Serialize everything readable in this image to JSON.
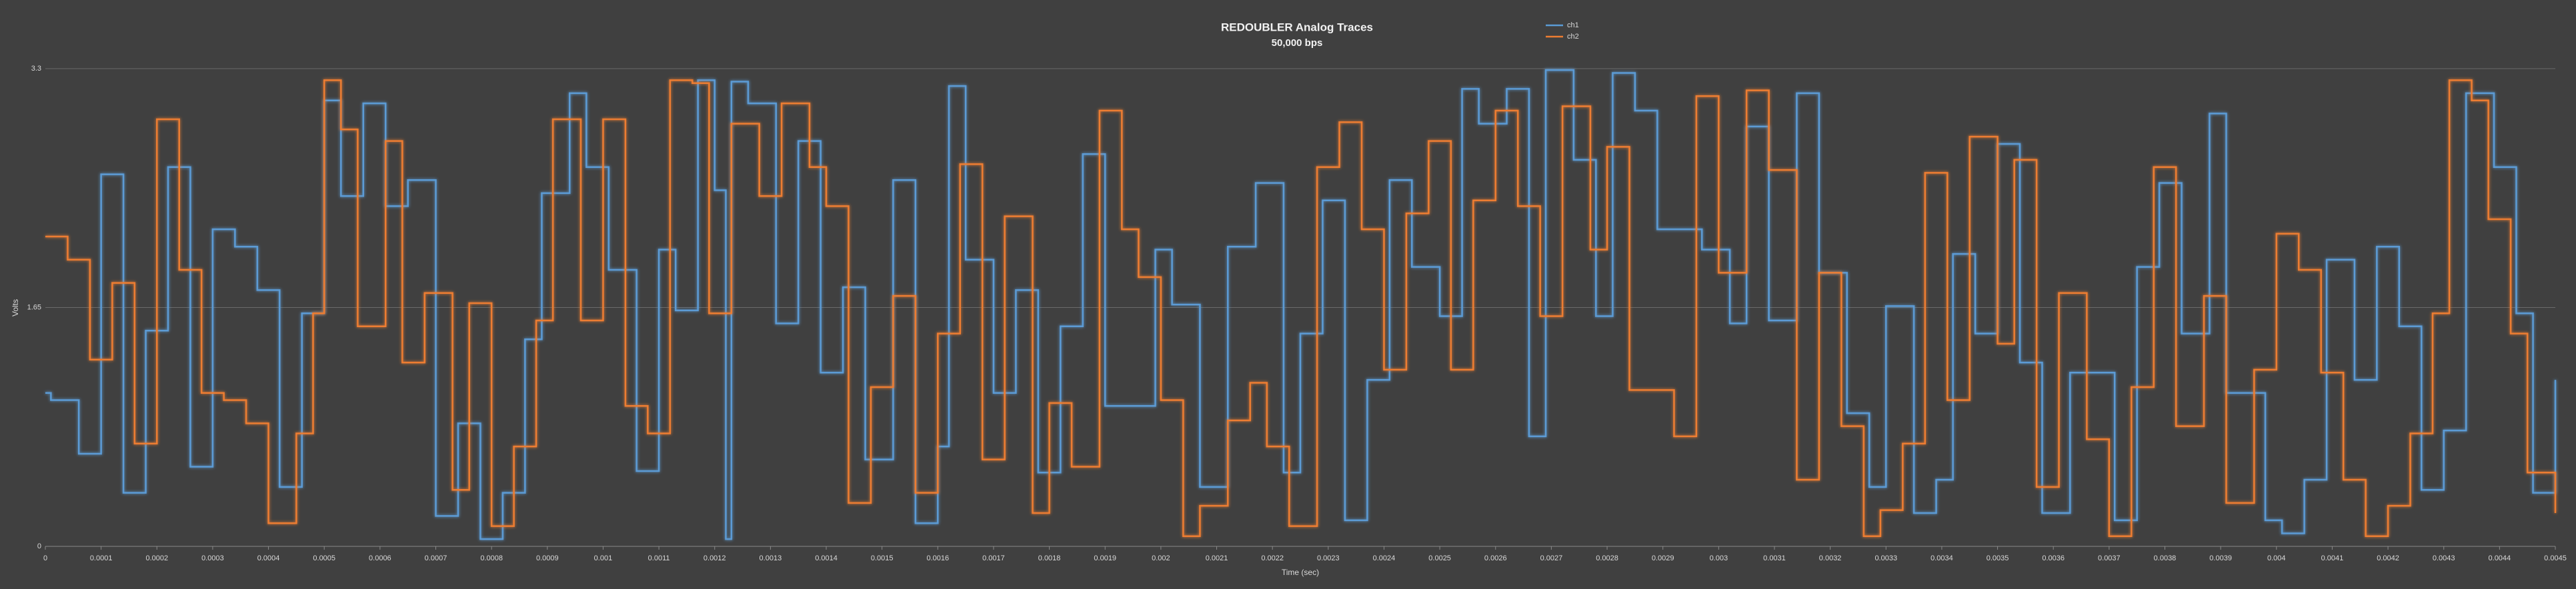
{
  "chart_data": {
    "type": "step-line",
    "title": "REDOUBLER Analog Traces",
    "subtitle": "50,000 bps",
    "x_label": "Time (sec)",
    "y_label": "Volts",
    "xlim": [
      0,
      0.0045
    ],
    "xticks": [
      0,
      0.0001,
      0.0002,
      0.0003,
      0.0004,
      0.0005,
      0.0006,
      0.0007,
      0.0008,
      0.0009,
      0.001,
      0.0011,
      0.0012,
      0.0013,
      0.0014,
      0.0015,
      0.0016,
      0.0017,
      0.0018,
      0.0019,
      0.002,
      0.0021,
      0.0022,
      0.0023,
      0.0024,
      0.0025,
      0.0026,
      0.0027,
      0.0028,
      0.0029,
      0.003,
      0.0031,
      0.0032,
      0.0033,
      0.0034,
      0.0035,
      0.0036,
      0.0037,
      0.0038,
      0.0039,
      0.004,
      0.0041,
      0.0042,
      0.0043,
      0.0044,
      0.0045
    ],
    "ylim": [
      0,
      3.3
    ],
    "yticks": [
      0,
      1.65,
      3.3
    ],
    "grid": true,
    "legend": "top",
    "series": [
      {
        "name": "ch1",
        "color": "#5b9bd5",
        "x": [
          0,
          1e-05,
          6e-05,
          0.0001,
          0.00014,
          0.00018,
          0.00022,
          0.00026,
          0.0003,
          0.00034,
          0.00038,
          0.00042,
          0.00046,
          0.0005,
          0.00053,
          0.00057,
          0.00061,
          0.00065,
          0.0007,
          0.00074,
          0.00078,
          0.00082,
          0.00086,
          0.00089,
          0.00094,
          0.00097,
          0.00101,
          0.00106,
          0.0011,
          0.00113,
          0.00117,
          0.0012,
          0.00122,
          0.00123,
          0.00126,
          0.00131,
          0.00135,
          0.00139,
          0.00143,
          0.00147,
          0.00152,
          0.00156,
          0.0016,
          0.00162,
          0.00165,
          0.0017,
          0.00174,
          0.00178,
          0.00182,
          0.00186,
          0.0019,
          0.00199,
          0.00202,
          0.00207,
          0.00212,
          0.00217,
          0.00222,
          0.00225,
          0.00229,
          0.00233,
          0.00237,
          0.00241,
          0.00245,
          0.0025,
          0.00254,
          0.00257,
          0.00262,
          0.00266,
          0.00269,
          0.00274,
          0.00278,
          0.00281,
          0.00285,
          0.00289,
          0.00297,
          0.00302,
          0.00305,
          0.00309,
          0.00314,
          0.00318,
          0.00323,
          0.00327,
          0.0033,
          0.00335,
          0.00339,
          0.00342,
          0.00346,
          0.0035,
          0.00354,
          0.00358,
          0.00363,
          0.00371,
          0.00375,
          0.00379,
          0.00383,
          0.00388,
          0.00391,
          0.00398,
          0.00401,
          0.00405,
          0.00409,
          0.00414,
          0.00418,
          0.00422,
          0.00426,
          0.0043,
          0.00434,
          0.00439,
          0.00443,
          0.00446,
          0.0045
        ],
        "values": [
          1.06,
          1.01,
          0.64,
          2.57,
          0.37,
          1.49,
          2.62,
          0.55,
          2.19,
          2.07,
          1.77,
          0.41,
          1.61,
          3.08,
          2.42,
          3.06,
          2.35,
          2.53,
          0.21,
          0.85,
          0.05,
          0.37,
          1.43,
          2.44,
          3.13,
          2.62,
          1.91,
          0.52,
          2.05,
          1.63,
          3.22,
          2.46,
          0.05,
          3.21,
          3.06,
          1.54,
          2.8,
          1.2,
          1.79,
          0.6,
          2.53,
          0.16,
          0.69,
          3.18,
          1.98,
          1.06,
          1.77,
          0.51,
          1.52,
          2.71,
          0.97,
          2.05,
          1.67,
          0.41,
          2.07,
          2.51,
          0.51,
          1.47,
          2.39,
          0.18,
          1.15,
          2.53,
          1.93,
          1.59,
          3.16,
          2.92,
          3.16,
          0.76,
          3.29,
          2.67,
          1.59,
          3.27,
          3.01,
          2.19,
          2.05,
          1.54,
          2.9,
          1.56,
          3.13,
          1.89,
          0.92,
          0.41,
          1.66,
          0.23,
          0.46,
          2.02,
          1.47,
          2.78,
          1.27,
          0.23,
          1.2,
          0.18,
          1.93,
          2.51,
          1.47,
          2.99,
          1.06,
          0.18,
          0.09,
          0.46,
          1.98,
          1.15,
          2.07,
          1.52,
          0.39,
          0.8,
          3.13,
          2.62,
          1.61,
          0.37,
          1.15
        ]
      },
      {
        "name": "ch2",
        "color": "#ed7d31",
        "x": [
          0,
          4e-05,
          8e-05,
          0.00012,
          0.00016,
          0.0002,
          0.00024,
          0.00028,
          0.00032,
          0.00036,
          0.0004,
          0.00045,
          0.00048,
          0.0005,
          0.00053,
          0.00056,
          0.00061,
          0.00064,
          0.00068,
          0.00073,
          0.00076,
          0.0008,
          0.00084,
          0.00088,
          0.00091,
          0.00096,
          0.001,
          0.00104,
          0.00108,
          0.00112,
          0.00116,
          0.00119,
          0.00123,
          0.00128,
          0.00132,
          0.00137,
          0.0014,
          0.00144,
          0.00148,
          0.00152,
          0.00156,
          0.0016,
          0.00164,
          0.00168,
          0.00172,
          0.00177,
          0.0018,
          0.00184,
          0.00189,
          0.00193,
          0.00196,
          0.002,
          0.00204,
          0.00207,
          0.00212,
          0.00216,
          0.00219,
          0.00223,
          0.00228,
          0.00232,
          0.00236,
          0.0024,
          0.00244,
          0.00248,
          0.00252,
          0.00256,
          0.0026,
          0.00264,
          0.00268,
          0.00272,
          0.00277,
          0.0028,
          0.00284,
          0.00292,
          0.00296,
          0.003,
          0.00305,
          0.00309,
          0.00314,
          0.00318,
          0.00322,
          0.00326,
          0.00329,
          0.00333,
          0.00337,
          0.00341,
          0.00345,
          0.0035,
          0.00353,
          0.00357,
          0.00361,
          0.00366,
          0.0037,
          0.00374,
          0.00378,
          0.00382,
          0.00387,
          0.00391,
          0.00396,
          0.004,
          0.00404,
          0.00408,
          0.00412,
          0.00416,
          0.0042,
          0.00424,
          0.00428,
          0.00431,
          0.00435,
          0.00438,
          0.00442,
          0.00445,
          0.0045
        ],
        "values": [
          2.14,
          1.98,
          1.29,
          1.82,
          0.71,
          2.95,
          1.91,
          1.06,
          1.01,
          0.85,
          0.16,
          0.78,
          1.61,
          3.22,
          2.88,
          1.52,
          2.8,
          1.27,
          1.75,
          0.39,
          1.68,
          0.14,
          0.69,
          1.56,
          2.95,
          1.56,
          2.95,
          0.97,
          0.78,
          3.22,
          3.2,
          1.61,
          2.92,
          2.42,
          3.06,
          2.62,
          2.35,
          0.3,
          1.1,
          1.73,
          0.37,
          1.47,
          2.64,
          0.6,
          2.28,
          0.23,
          0.99,
          0.55,
          3.01,
          2.19,
          1.86,
          1.01,
          0.07,
          0.28,
          0.87,
          1.13,
          0.69,
          0.14,
          2.62,
          2.93,
          2.19,
          1.22,
          2.3,
          2.8,
          1.22,
          2.39,
          3.01,
          2.35,
          1.59,
          3.04,
          2.05,
          2.76,
          1.08,
          0.76,
          3.11,
          1.89,
          3.15,
          2.6,
          0.46,
          1.89,
          0.83,
          0.07,
          0.25,
          0.71,
          2.58,
          1.01,
          2.83,
          1.4,
          2.67,
          0.41,
          1.75,
          0.74,
          0.07,
          1.1,
          2.62,
          0.83,
          1.73,
          0.3,
          1.22,
          2.16,
          1.91,
          1.2,
          0.46,
          0.07,
          0.28,
          0.78,
          1.61,
          3.22,
          3.08,
          2.26,
          1.47,
          0.51,
          0.23
        ]
      }
    ]
  }
}
